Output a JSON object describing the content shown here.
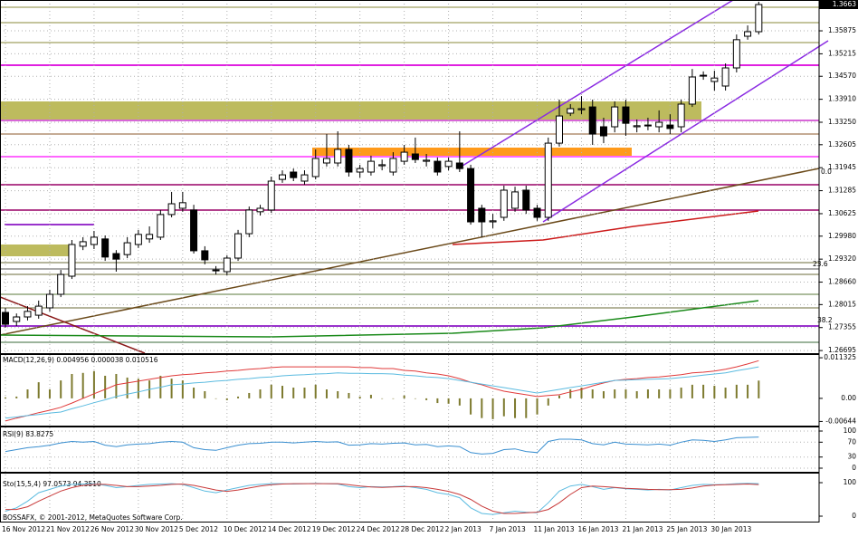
{
  "chart_data": [
    {
      "type": "candlestick",
      "categories": [
        "16 Nov 2012",
        null,
        null,
        null,
        "21 Nov 2012",
        null,
        null,
        null,
        "26 Nov 2012",
        null,
        null,
        null,
        "30 Nov 2012",
        null,
        null,
        null,
        "5 Dec 2012",
        null,
        null,
        null,
        "10 Dec 2012",
        null,
        null,
        null,
        "14 Dec 2012",
        null,
        null,
        null,
        "19 Dec 2012",
        null,
        null,
        null,
        "24 Dec 2012",
        null,
        null,
        null,
        "28 Dec 2012",
        null,
        null,
        null,
        "2 Jan 2013",
        null,
        null,
        null,
        "7 Jan 2013",
        null,
        null,
        null,
        "11 Jan 2013",
        null,
        null,
        null,
        "16 Jan 2013",
        null,
        null,
        null,
        "21 Jan 2013",
        null,
        null,
        null,
        "25 Jan 2013",
        null,
        null,
        null,
        "30 Jan 2013",
        null,
        null,
        null,
        null
      ],
      "open": [
        1.2779,
        1.2753,
        1.2766,
        1.2771,
        1.2792,
        1.2831,
        1.2883,
        1.2969,
        1.2974,
        1.299,
        1.2948,
        1.2945,
        1.2974,
        1.299,
        1.2995,
        1.306,
        1.3078,
        1.3073,
        1.2956,
        1.2899,
        1.2896,
        1.2935,
        1.3005,
        1.3068,
        1.3073,
        1.3161,
        1.3182,
        1.3156,
        1.3169,
        1.3208,
        1.3208,
        1.3247,
        1.3182,
        1.3182,
        1.32,
        1.3182,
        1.3213,
        1.3234,
        1.3213,
        1.3213,
        1.3198,
        1.3208,
        1.3192,
        1.3078,
        1.3039,
        1.3052,
        1.3078,
        1.313,
        1.3078,
        1.3052,
        1.3265,
        1.3351,
        1.3361,
        1.3369,
        1.3312,
        1.3312,
        1.3369,
        1.3312,
        1.3315,
        1.3312,
        1.3317,
        1.3312,
        1.3377,
        1.3458,
        1.3442,
        1.3429,
        1.3481,
        1.3572,
        1.3585
      ],
      "high": [
        1.2792,
        1.2776,
        1.2797,
        1.2813,
        1.2844,
        1.2901,
        1.2987,
        1.2995,
        1.3013,
        1.3,
        1.2958,
        1.2995,
        1.3016,
        1.3026,
        1.3073,
        1.3125,
        1.3125,
        1.3088,
        1.2969,
        1.2912,
        1.2943,
        1.3016,
        1.3083,
        1.3088,
        1.3169,
        1.3187,
        1.3192,
        1.3187,
        1.3247,
        1.3291,
        1.3299,
        1.326,
        1.3203,
        1.3229,
        1.3218,
        1.3239,
        1.326,
        1.3281,
        1.3234,
        1.3224,
        1.3224,
        1.3299,
        1.3203,
        1.3088,
        1.3062,
        1.3143,
        1.314,
        1.3143,
        1.3088,
        1.3281,
        1.339,
        1.3377,
        1.34,
        1.339,
        1.3338,
        1.3385,
        1.339,
        1.3333,
        1.3338,
        1.3359,
        1.3348,
        1.339,
        1.3478,
        1.3471,
        1.3473,
        1.3494,
        1.3577,
        1.3603,
        1.3671
      ],
      "low": [
        1.2735,
        1.274,
        1.2756,
        1.2761,
        1.2782,
        1.2823,
        1.2875,
        1.2958,
        1.2961,
        1.2927,
        1.2896,
        1.2935,
        1.2964,
        1.2979,
        1.2987,
        1.3052,
        1.3068,
        1.2948,
        1.2917,
        1.2888,
        1.2886,
        1.2927,
        1.2995,
        1.3057,
        1.3065,
        1.3151,
        1.3156,
        1.3146,
        1.3161,
        1.3198,
        1.3198,
        1.3169,
        1.3166,
        1.3172,
        1.3187,
        1.3172,
        1.3203,
        1.3208,
        1.3198,
        1.3172,
        1.3187,
        1.3182,
        1.3031,
        1.2995,
        1.3021,
        1.3042,
        1.3068,
        1.3062,
        1.3042,
        1.3042,
        1.3255,
        1.3343,
        1.3348,
        1.326,
        1.3265,
        1.3296,
        1.3286,
        1.3296,
        1.3302,
        1.3296,
        1.3291,
        1.3296,
        1.3369,
        1.3447,
        1.3416,
        1.3416,
        1.3468,
        1.3562,
        1.3577
      ],
      "close": [
        1.2745,
        1.2766,
        1.2782,
        1.2797,
        1.2831,
        1.2888,
        1.2974,
        1.2982,
        1.2995,
        1.2938,
        1.2932,
        1.2979,
        1.3003,
        1.3003,
        1.306,
        1.3091,
        1.3094,
        1.2956,
        1.293,
        1.2901,
        1.2935,
        1.3005,
        1.3073,
        1.3078,
        1.3156,
        1.3174,
        1.3166,
        1.3174,
        1.3221,
        1.3221,
        1.3247,
        1.3182,
        1.3192,
        1.3213,
        1.3203,
        1.3221,
        1.3239,
        1.3218,
        1.3216,
        1.3182,
        1.3213,
        1.3192,
        1.3039,
        1.3039,
        1.3042,
        1.313,
        1.3125,
        1.3073,
        1.3052,
        1.3265,
        1.3343,
        1.3364,
        1.3364,
        1.3291,
        1.3286,
        1.3369,
        1.3322,
        1.3315,
        1.3317,
        1.3325,
        1.3307,
        1.3377,
        1.3455,
        1.346,
        1.3452,
        1.3481,
        1.3562,
        1.3585,
        1.3663
      ],
      "bull_color": "#ffffff",
      "bear_color": "#000000",
      "ylim": [
        1.2662,
        1.3676
      ],
      "yticks": [
        1.35875,
        1.35215,
        {
          "value": 1.3457,
          "label": "1.34570"
        },
        {
          "value": 1.3391,
          "label": "1.33910"
        },
        {
          "value": 1.3325,
          "label": "1.33250"
        },
        1.32605,
        1.31945,
        1.31285,
        1.30625,
        {
          "value": 1.2998,
          "label": "1.29980"
        },
        {
          "value": 1.2932,
          "label": "1.29320"
        },
        {
          "value": 1.2866,
          "label": "1.28660"
        },
        1.28015,
        1.27355,
        1.26695
      ],
      "last_price": {
        "value": 1.3663,
        "label": "1.3663"
      },
      "annotations": [
        "0.0",
        "23.6",
        "38.2"
      ],
      "grid": true
    },
    {
      "type": "combo",
      "label": "MACD(12,26,9) 0.004956 0.000038 0.010516",
      "values": [
        0.0003,
        0.0005,
        0.0025,
        0.0045,
        0.0025,
        0.005,
        0.0068,
        0.0071,
        0.0076,
        0.0063,
        0.0068,
        0.0058,
        0.0055,
        0.005,
        0.0063,
        0.0055,
        0.005,
        0.003,
        0.002,
        0,
        -0.0005,
        0.0005,
        0.0015,
        0.0025,
        0.0038,
        0.0035,
        0.003,
        0.003,
        0.0038,
        0.0025,
        0.002,
        0.0015,
        0.0005,
        0.001,
        0,
        0,
        0.0008,
        0,
        -0.0005,
        -0.0013,
        -0.0015,
        -0.002,
        -0.0045,
        -0.0055,
        -0.0058,
        -0.005,
        -0.0055,
        -0.0055,
        -0.0045,
        -0.002,
        0.0008,
        0.0025,
        0.003,
        0.0025,
        0.002,
        0.0025,
        0.0025,
        0.002,
        0.0025,
        0.0025,
        0.0025,
        0.003,
        0.0038,
        0.0038,
        0.0035,
        0.003,
        0.0038,
        0.0038,
        0.004956
      ],
      "color": "#7d7a2e",
      "series": [
        {
          "color": "#e03a3a",
          "values": [
            -0.0063,
            -0.0055,
            -0.0048,
            -0.004,
            -0.0033,
            -0.0025,
            -0.0013,
            0,
            0.0013,
            0.0025,
            0.0038,
            0.0043,
            0.0048,
            0.0053,
            0.0058,
            0.0063,
            0.0066,
            0.0068,
            0.0071,
            0.0073,
            0.0076,
            0.0078,
            0.0081,
            0.0083,
            0.0086,
            0.0088,
            0.0088,
            0.0088,
            0.0088,
            0.0088,
            0.0088,
            0.0088,
            0.0086,
            0.0086,
            0.0083,
            0.0083,
            0.0078,
            0.0076,
            0.0071,
            0.0068,
            0.0063,
            0.0055,
            0.0045,
            0.0038,
            0.0028,
            0.002,
            0.0015,
            0.001,
            0.0005,
            0.0008,
            0.001,
            0.0018,
            0.0025,
            0.0035,
            0.0043,
            0.005,
            0.0053,
            0.0055,
            0.0058,
            0.006,
            0.0063,
            0.0066,
            0.0071,
            0.0073,
            0.0076,
            0.0081,
            0.0088,
            0.0096,
            0.010516
          ]
        },
        {
          "color": "#5bbbe0",
          "values": [
            -0.0055,
            -0.0052,
            -0.0048,
            -0.0045,
            -0.0041,
            -0.0038,
            -0.0029,
            -0.0021,
            -0.0012,
            -0.0004,
            0.0005,
            0.0012,
            0.0018,
            0.0025,
            0.0031,
            0.0038,
            0.004,
            0.0043,
            0.0045,
            0.0048,
            0.005,
            0.0053,
            0.0055,
            0.0058,
            0.006,
            0.0063,
            0.0065,
            0.0066,
            0.0068,
            0.0069,
            0.0071,
            0.007,
            0.007,
            0.0069,
            0.0069,
            0.0068,
            0.0065,
            0.0063,
            0.006,
            0.0058,
            0.0055,
            0.005,
            0.0045,
            0.004,
            0.0035,
            0.003,
            0.0025,
            0.002,
            0.0015,
            0.002,
            0.0025,
            0.003,
            0.0035,
            0.004,
            0.0045,
            0.005,
            0.0051,
            0.0052,
            0.0053,
            0.0054,
            0.0055,
            0.0058,
            0.0061,
            0.0065,
            0.0068,
            0.0071,
            0.0077,
            0.0082,
            0.0088
          ]
        }
      ],
      "ylim": [
        -0.0076,
        0.0121
      ],
      "yticks": [
        0.011325,
        {
          "value": 0,
          "label": "0.00"
        },
        -0.00644
      ],
      "grid": false
    },
    {
      "type": "line",
      "label": "RSI(9) 83.8275",
      "series": [
        {
          "color": "#3a8fd0",
          "values": [
            45,
            50,
            55,
            58,
            62,
            68,
            72,
            70,
            72,
            62,
            58,
            63,
            65,
            66,
            70,
            72,
            70,
            55,
            50,
            48,
            55,
            62,
            66,
            67,
            70,
            70,
            68,
            70,
            72,
            70,
            71,
            62,
            63,
            66,
            65,
            67,
            68,
            63,
            64,
            58,
            60,
            58,
            42,
            38,
            40,
            50,
            52,
            45,
            42,
            72,
            78,
            78,
            76,
            66,
            63,
            70,
            65,
            64,
            63,
            65,
            62,
            70,
            76,
            75,
            72,
            76,
            82,
            83,
            83.8275
          ]
        }
      ],
      "ylim": [
        0,
        100
      ],
      "yticks": [
        100,
        70,
        30,
        0
      ],
      "grid": true
    },
    {
      "type": "line",
      "label": "Sto(15,5,4) 97.0573 94.3510",
      "series": [
        {
          "color": "#5bbbe0",
          "values": [
            15,
            25,
            45,
            70,
            80,
            90,
            95,
            96,
            97,
            92,
            85,
            88,
            92,
            95,
            96,
            97,
            95,
            85,
            75,
            70,
            78,
            85,
            92,
            95,
            97,
            97,
            96,
            97,
            98,
            97,
            96,
            88,
            85,
            88,
            87,
            88,
            90,
            85,
            80,
            70,
            65,
            55,
            25,
            8,
            5,
            10,
            15,
            12,
            10,
            40,
            75,
            90,
            95,
            88,
            80,
            85,
            82,
            80,
            78,
            80,
            78,
            85,
            92,
            95,
            94,
            95,
            97,
            98,
            97.0573
          ]
        },
        {
          "color": "#c83a3a",
          "values": [
            20,
            20,
            28,
            45,
            60,
            75,
            85,
            92,
            95,
            95,
            92,
            88,
            88,
            90,
            92,
            95,
            96,
            92,
            85,
            78,
            74,
            78,
            84,
            90,
            94,
            96,
            97,
            97,
            97,
            97,
            97,
            94,
            90,
            87,
            86,
            87,
            88,
            88,
            85,
            80,
            74,
            65,
            50,
            30,
            15,
            8,
            8,
            10,
            12,
            20,
            40,
            65,
            85,
            90,
            88,
            86,
            83,
            82,
            80,
            79,
            79,
            80,
            84,
            90,
            93,
            94,
            95,
            96,
            94.351
          ]
        }
      ],
      "ylim": [
        0,
        100
      ],
      "yticks": [
        100,
        0
      ],
      "grid": false
    }
  ],
  "watermark": "BOSSAFX, © 2001-2012, MetaQuotes Software Corp."
}
